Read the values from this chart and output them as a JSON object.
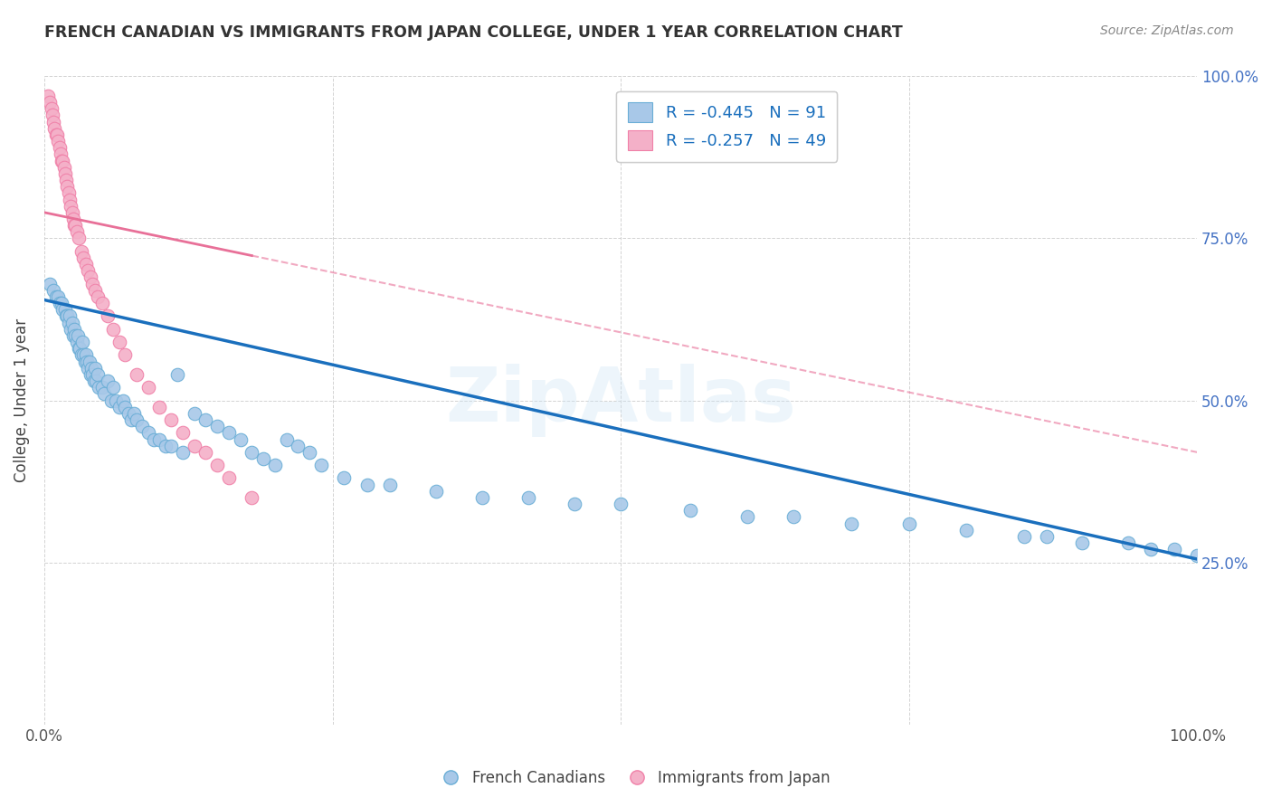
{
  "title": "FRENCH CANADIAN VS IMMIGRANTS FROM JAPAN COLLEGE, UNDER 1 YEAR CORRELATION CHART",
  "source": "Source: ZipAtlas.com",
  "ylabel": "College, Under 1 year",
  "legend_entries": [
    {
      "label": "R = -0.445   N = 91",
      "color": "#a8c4e0"
    },
    {
      "label": "R = -0.257   N = 49",
      "color": "#f4b8c8"
    }
  ],
  "legend_bottom": [
    "French Canadians",
    "Immigrants from Japan"
  ],
  "blue_color": "#a8c8e8",
  "pink_color": "#f4b0c8",
  "blue_edge_color": "#6aaed6",
  "pink_edge_color": "#f080a8",
  "blue_line_color": "#1a6fbd",
  "pink_line_color": "#e87098",
  "watermark": "ZipAtlas",
  "blue_scatter_x": [
    0.005,
    0.008,
    0.01,
    0.012,
    0.013,
    0.015,
    0.016,
    0.018,
    0.019,
    0.02,
    0.021,
    0.022,
    0.023,
    0.024,
    0.025,
    0.026,
    0.027,
    0.028,
    0.029,
    0.03,
    0.031,
    0.032,
    0.033,
    0.034,
    0.035,
    0.036,
    0.037,
    0.038,
    0.039,
    0.04,
    0.041,
    0.042,
    0.043,
    0.044,
    0.045,
    0.046,
    0.047,
    0.05,
    0.052,
    0.055,
    0.058,
    0.06,
    0.062,
    0.065,
    0.068,
    0.07,
    0.073,
    0.075,
    0.078,
    0.08,
    0.085,
    0.09,
    0.095,
    0.1,
    0.105,
    0.11,
    0.115,
    0.12,
    0.13,
    0.14,
    0.15,
    0.16,
    0.17,
    0.18,
    0.19,
    0.2,
    0.21,
    0.22,
    0.23,
    0.24,
    0.26,
    0.28,
    0.3,
    0.34,
    0.38,
    0.42,
    0.46,
    0.5,
    0.56,
    0.61,
    0.65,
    0.7,
    0.75,
    0.8,
    0.85,
    0.87,
    0.9,
    0.94,
    0.96,
    0.98,
    1.0
  ],
  "blue_scatter_y": [
    0.68,
    0.67,
    0.66,
    0.66,
    0.65,
    0.65,
    0.64,
    0.64,
    0.63,
    0.63,
    0.62,
    0.63,
    0.61,
    0.62,
    0.6,
    0.61,
    0.6,
    0.59,
    0.6,
    0.58,
    0.58,
    0.57,
    0.59,
    0.57,
    0.56,
    0.57,
    0.56,
    0.55,
    0.56,
    0.54,
    0.55,
    0.54,
    0.53,
    0.55,
    0.53,
    0.54,
    0.52,
    0.52,
    0.51,
    0.53,
    0.5,
    0.52,
    0.5,
    0.49,
    0.5,
    0.49,
    0.48,
    0.47,
    0.48,
    0.47,
    0.46,
    0.45,
    0.44,
    0.44,
    0.43,
    0.43,
    0.54,
    0.42,
    0.48,
    0.47,
    0.46,
    0.45,
    0.44,
    0.42,
    0.41,
    0.4,
    0.44,
    0.43,
    0.42,
    0.4,
    0.38,
    0.37,
    0.37,
    0.36,
    0.35,
    0.35,
    0.34,
    0.34,
    0.33,
    0.32,
    0.32,
    0.31,
    0.31,
    0.3,
    0.29,
    0.29,
    0.28,
    0.28,
    0.27,
    0.27,
    0.26
  ],
  "pink_scatter_x": [
    0.003,
    0.005,
    0.006,
    0.007,
    0.008,
    0.009,
    0.01,
    0.011,
    0.012,
    0.013,
    0.014,
    0.015,
    0.016,
    0.017,
    0.018,
    0.019,
    0.02,
    0.021,
    0.022,
    0.023,
    0.024,
    0.025,
    0.026,
    0.027,
    0.028,
    0.03,
    0.032,
    0.034,
    0.036,
    0.038,
    0.04,
    0.042,
    0.044,
    0.046,
    0.05,
    0.055,
    0.06,
    0.065,
    0.07,
    0.08,
    0.09,
    0.1,
    0.11,
    0.12,
    0.13,
    0.14,
    0.15,
    0.16,
    0.18
  ],
  "pink_scatter_y": [
    0.97,
    0.96,
    0.95,
    0.94,
    0.93,
    0.92,
    0.91,
    0.91,
    0.9,
    0.89,
    0.88,
    0.87,
    0.87,
    0.86,
    0.85,
    0.84,
    0.83,
    0.82,
    0.81,
    0.8,
    0.79,
    0.78,
    0.77,
    0.77,
    0.76,
    0.75,
    0.73,
    0.72,
    0.71,
    0.7,
    0.69,
    0.68,
    0.67,
    0.66,
    0.65,
    0.63,
    0.61,
    0.59,
    0.57,
    0.54,
    0.52,
    0.49,
    0.47,
    0.45,
    0.43,
    0.42,
    0.4,
    0.38,
    0.35
  ],
  "blue_trend_x0": 0.0,
  "blue_trend_x1": 1.0,
  "blue_trend_y0": 0.655,
  "blue_trend_y1": 0.255,
  "pink_trend_x0": 0.0,
  "pink_trend_x1": 1.0,
  "pink_trend_y0": 0.79,
  "pink_trend_y1": 0.42,
  "xmin": 0.0,
  "xmax": 1.0,
  "ymin": 0.0,
  "ymax": 1.0,
  "y_ticks": [
    0.0,
    0.25,
    0.5,
    0.75,
    1.0
  ],
  "y_tick_labels_right": [
    "",
    "25.0%",
    "50.0%",
    "75.0%",
    "100.0%"
  ],
  "x_ticks": [
    0.0,
    0.25,
    0.5,
    0.75,
    1.0
  ],
  "x_tick_labels": [
    "0.0%",
    "",
    "",
    "",
    "100.0%"
  ]
}
